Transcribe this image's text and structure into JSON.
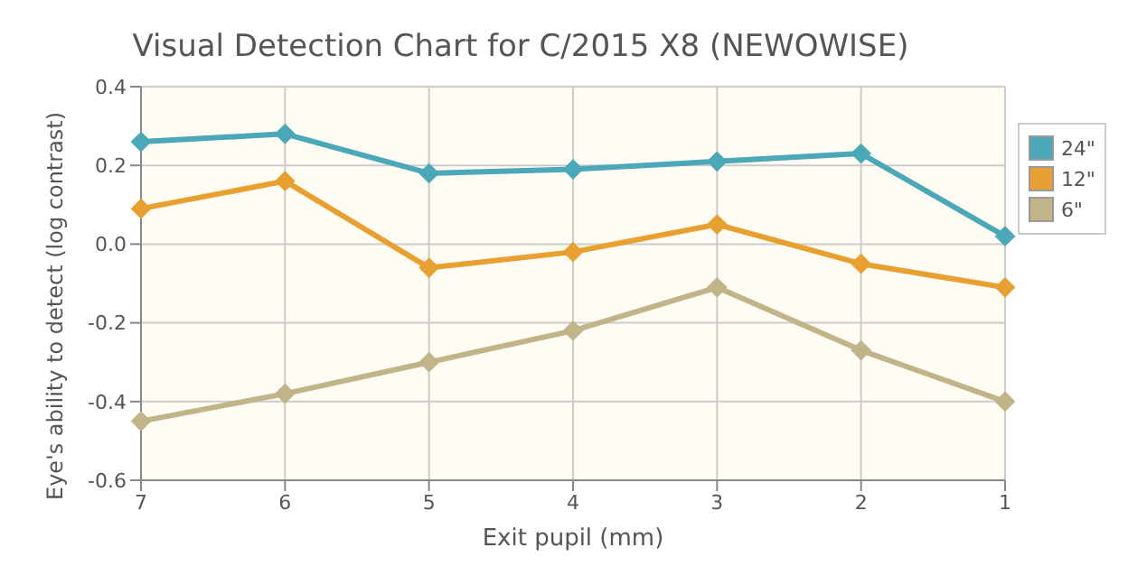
{
  "chart_data": {
    "type": "line",
    "title": "Visual Detection Chart for C/2015 X8 (NEWOWISE)",
    "xlabel": "Exit pupil (mm)",
    "ylabel": "Eye's ability to detect (log contrast)",
    "categories": [
      "7",
      "6",
      "5",
      "4",
      "3",
      "2",
      "1"
    ],
    "series": [
      {
        "name": "24\"",
        "color": "#4aa8b8",
        "values": [
          0.26,
          0.28,
          0.18,
          0.19,
          0.21,
          0.23,
          0.02
        ]
      },
      {
        "name": "12\"",
        "color": "#e8a030",
        "values": [
          0.09,
          0.16,
          -0.06,
          -0.02,
          0.05,
          -0.05,
          -0.11
        ]
      },
      {
        "name": "6\"",
        "color": "#c0b488",
        "values": [
          -0.45,
          -0.38,
          -0.3,
          -0.22,
          -0.11,
          -0.27,
          -0.4
        ]
      }
    ],
    "ylim": [
      -0.6,
      0.4
    ],
    "yticks": [
      {
        "value": -0.6,
        "label": "-0.6"
      },
      {
        "value": -0.4,
        "label": "-0.4"
      },
      {
        "value": -0.2,
        "label": "-0.2"
      },
      {
        "value": 0,
        "label": "0.0"
      },
      {
        "value": 0.2,
        "label": "0.2"
      },
      {
        "value": 0.4,
        "label": "0.4"
      }
    ],
    "grid": true,
    "legend": "top right",
    "marker": "diamond",
    "line_style": "solid"
  }
}
